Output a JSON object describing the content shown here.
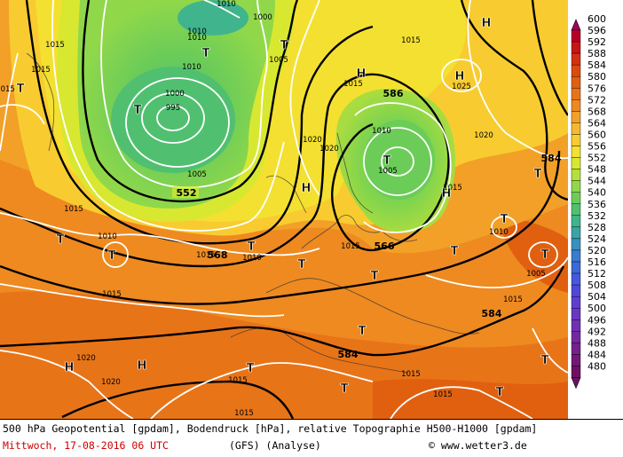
{
  "map": {
    "pressure_labels": [
      "1010",
      "1000",
      "1010",
      "1010",
      "1015",
      "1005",
      "995",
      "1000",
      "1005",
      "1015",
      "1010",
      "1015",
      "1010",
      "1020",
      "1020",
      "1005",
      "1025",
      "1020",
      "1010",
      "1015",
      "1010",
      "1010",
      "1015",
      "1005",
      "1015",
      "1020",
      "1020",
      "1015",
      "1015",
      "1015",
      "1015",
      "1015",
      "1015",
      "1015",
      "1015",
      "1015"
    ],
    "height_labels": [
      "552",
      "568",
      "566",
      "586",
      "584",
      "584",
      "584"
    ],
    "high_marker": "H",
    "low_marker": "T"
  },
  "legend": {
    "values": [
      "600",
      "596",
      "592",
      "588",
      "584",
      "580",
      "576",
      "572",
      "568",
      "564",
      "560",
      "556",
      "552",
      "548",
      "544",
      "540",
      "536",
      "532",
      "528",
      "524",
      "520",
      "516",
      "512",
      "508",
      "504",
      "500",
      "496",
      "492",
      "488",
      "484",
      "480"
    ],
    "colors": [
      "#a00060",
      "#b80028",
      "#c81414",
      "#d23010",
      "#dc4a0c",
      "#e06010",
      "#e87418",
      "#ee8a20",
      "#f2a028",
      "#f6b830",
      "#f8cc30",
      "#f4e030",
      "#d8e830",
      "#b4e03c",
      "#90d84a",
      "#6ccc58",
      "#50c070",
      "#40b48c",
      "#3aa4a8",
      "#3890c0",
      "#3a7cd0",
      "#3c68d8",
      "#4458dc",
      "#5048d8",
      "#5c3ed0",
      "#6836c4",
      "#7030b4",
      "#7428a0",
      "#76208c",
      "#741878",
      "#701064"
    ]
  },
  "footer": {
    "line1": "500 hPa Geopotential [gpdam], Bodendruck [hPa], relative Topographie H500-H1000 [gpdam]",
    "date": "Mittwoch, 17-08-2016  06 UTC",
    "model": "(GFS)  (Analyse)",
    "credit": "© www.wetter3.de"
  }
}
